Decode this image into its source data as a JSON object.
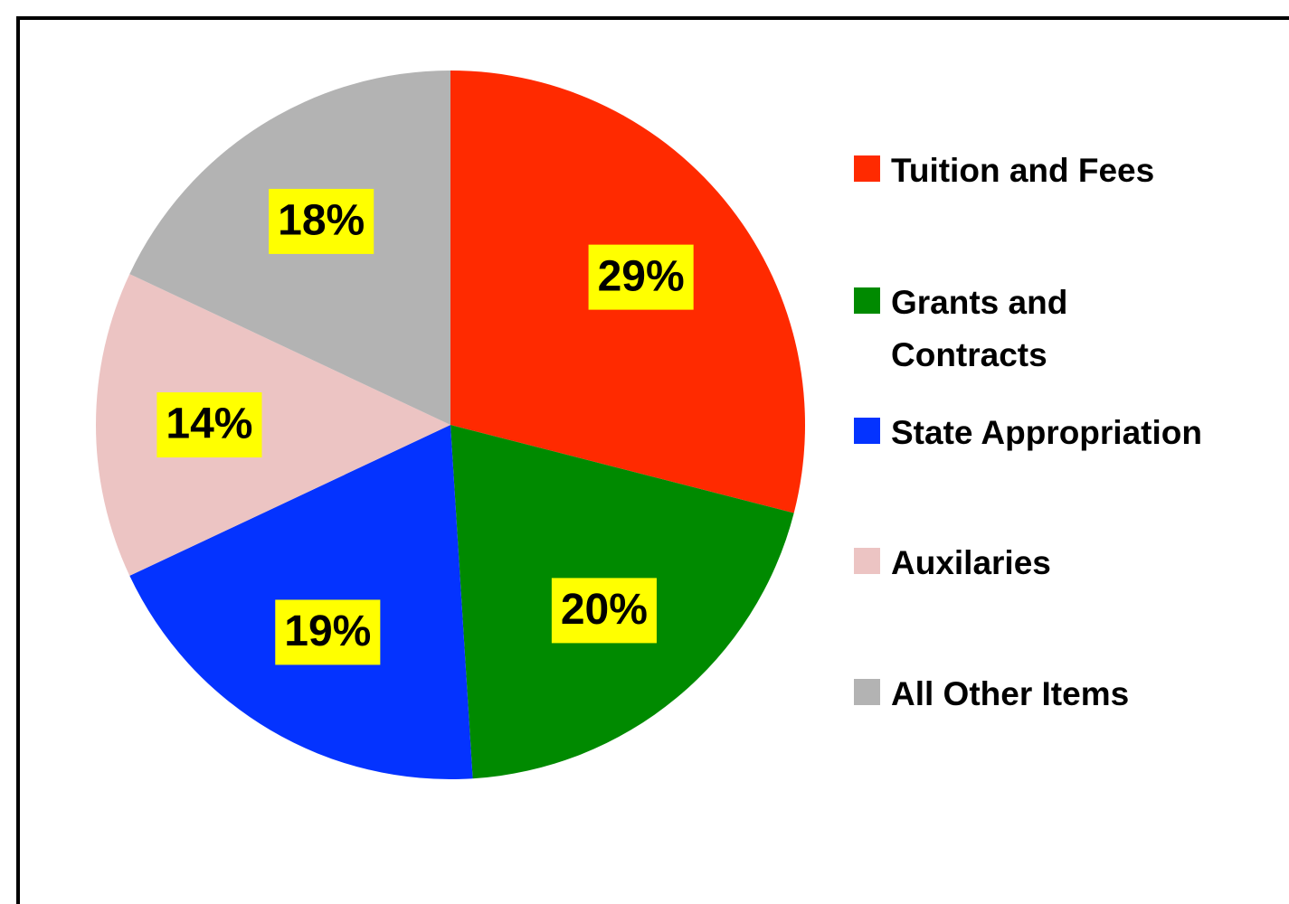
{
  "chart_data": {
    "type": "pie",
    "categories": [
      "Tuition and Fees",
      "Grants and Contracts",
      "State Appropriation",
      "Auxilaries",
      "All Other Items"
    ],
    "values": [
      29,
      20,
      19,
      14,
      18
    ],
    "value_labels": [
      "29%",
      "20%",
      "19%",
      "14%",
      "18%"
    ],
    "colors": [
      "#ff2a00",
      "#008a00",
      "#0433ff",
      "#ecc4c3",
      "#b3b3b3"
    ],
    "legend": "right"
  }
}
